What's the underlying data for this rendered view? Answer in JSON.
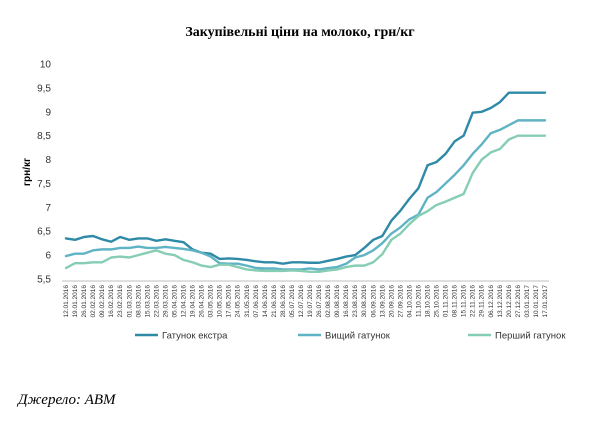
{
  "chart_data": {
    "type": "line",
    "title": "Закупівельні ціни на молоко, грн/кг",
    "ylabel": "грн/кг",
    "ylim": [
      5.5,
      10
    ],
    "yticks": [
      "5,5",
      "6",
      "6,5",
      "7",
      "7,5",
      "8",
      "8,5",
      "9",
      "9,5",
      "10"
    ],
    "grid": false,
    "legend_position": "bottom",
    "x_tick_labels": [
      "12.01.2016",
      "19.01.2016",
      "26.01.2016",
      "02.02.2016",
      "09.02.2016",
      "16.02.2016",
      "23.02.2016",
      "01.03.2016",
      "08.03.2016",
      "15.03.2016",
      "22.03.2016",
      "29.03.2016",
      "05.04.2016",
      "12.04.2016",
      "19.04.2016",
      "26.04.2016",
      "03.05.2016",
      "10.05.2016",
      "17.05.2016",
      "24.05.2016",
      "31.05.2016",
      "07.06.2016",
      "14.06.2016",
      "21.06.2016",
      "28.06.2016",
      "05.07.2016",
      "12.07.2016",
      "19.07.2016",
      "26.07.2016",
      "02.08.2016",
      "09.08.2016",
      "16.08.2016",
      "23.08.2016",
      "30.08.2016",
      "06.09.2016",
      "13.09.2016",
      "20.09.2016",
      "27.09.2016",
      "04.10.2016",
      "11.10.2016",
      "18.10.2016",
      "25.10.2016",
      "01.11.2016",
      "08.11.2016",
      "15.11.2016",
      "22.11.2016",
      "29.11.2016",
      "06.12.2016",
      "13.12.2016",
      "20.12.2016",
      "27.12.2016",
      "03.01.2017",
      "10.01.2017",
      "17.01.2017"
    ],
    "series": [
      {
        "name": "Гатунок екстра",
        "color": "#2e8aa6",
        "values": [
          6.35,
          6.32,
          6.38,
          6.4,
          6.33,
          6.28,
          6.38,
          6.32,
          6.35,
          6.35,
          6.3,
          6.33,
          6.3,
          6.27,
          6.12,
          6.05,
          6.03,
          5.92,
          5.93,
          5.92,
          5.9,
          5.87,
          5.85,
          5.85,
          5.82,
          5.85,
          5.85,
          5.84,
          5.84,
          5.88,
          5.92,
          5.97,
          6.0,
          6.15,
          6.32,
          6.4,
          6.72,
          6.93,
          7.18,
          7.4,
          7.88,
          7.95,
          8.12,
          8.38,
          8.5,
          8.98,
          9.0,
          9.08,
          9.2,
          9.4,
          9.4,
          9.4,
          9.4,
          9.4
        ]
      },
      {
        "name": "Вищий гатунок",
        "color": "#5fb3c4",
        "values": [
          5.98,
          6.03,
          6.03,
          6.1,
          6.12,
          6.12,
          6.15,
          6.15,
          6.18,
          6.15,
          6.15,
          6.17,
          6.15,
          6.13,
          6.1,
          6.05,
          5.97,
          5.83,
          5.82,
          5.82,
          5.78,
          5.73,
          5.72,
          5.72,
          5.7,
          5.7,
          5.7,
          5.72,
          5.7,
          5.73,
          5.75,
          5.82,
          5.95,
          6.0,
          6.1,
          6.25,
          6.45,
          6.58,
          6.75,
          6.85,
          7.2,
          7.32,
          7.5,
          7.68,
          7.88,
          8.12,
          8.32,
          8.55,
          8.62,
          8.72,
          8.82,
          8.82,
          8.82,
          8.82
        ]
      },
      {
        "name": "Перший гатунок",
        "color": "#86cdb4",
        "values": [
          5.73,
          5.83,
          5.83,
          5.85,
          5.85,
          5.95,
          5.97,
          5.95,
          6.0,
          6.05,
          6.1,
          6.03,
          6.0,
          5.9,
          5.85,
          5.78,
          5.75,
          5.8,
          5.8,
          5.75,
          5.7,
          5.68,
          5.67,
          5.67,
          5.67,
          5.68,
          5.67,
          5.65,
          5.65,
          5.68,
          5.7,
          5.75,
          5.78,
          5.78,
          5.85,
          6.02,
          6.32,
          6.45,
          6.65,
          6.82,
          6.92,
          7.05,
          7.12,
          7.2,
          7.28,
          7.72,
          8.0,
          8.15,
          8.22,
          8.42,
          8.5,
          8.5,
          8.5,
          8.5
        ]
      }
    ]
  },
  "source": "Джерело: АВМ"
}
